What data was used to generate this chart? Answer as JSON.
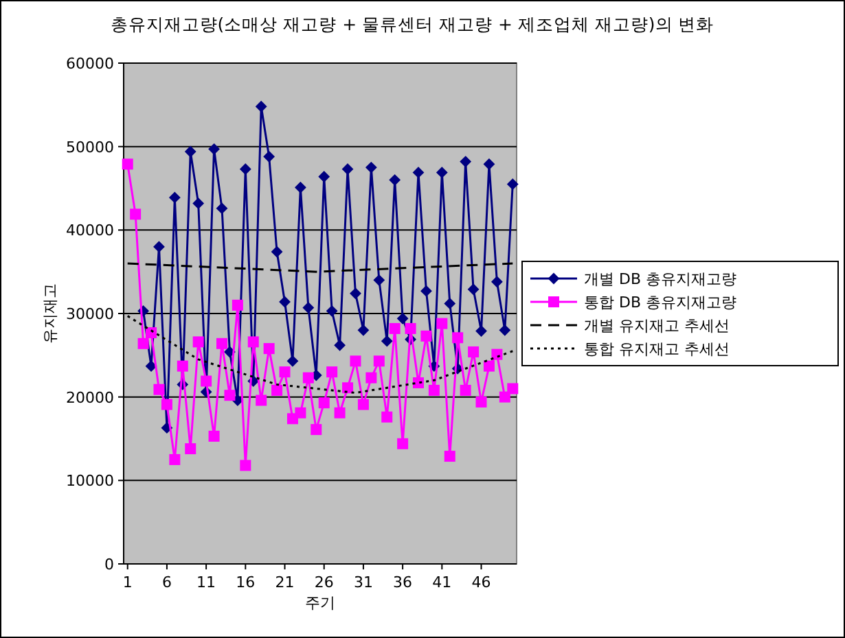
{
  "chart_data": {
    "type": "line",
    "title": "총유지재고량(소매상 재고량 + 물류센터 재고량 + 제조업체 재고량)의 변화",
    "xlabel": "주기",
    "ylabel": "유지재고",
    "xlim": [
      0.5,
      50.5
    ],
    "xticks": [
      1,
      6,
      11,
      16,
      21,
      26,
      31,
      36,
      41,
      46
    ],
    "ylim": [
      0,
      60000
    ],
    "yticks": [
      0,
      10000,
      20000,
      30000,
      40000,
      50000,
      60000
    ],
    "grid": "y",
    "legend": "right",
    "x": [
      1,
      2,
      3,
      4,
      5,
      6,
      7,
      8,
      9,
      10,
      11,
      12,
      13,
      14,
      15,
      16,
      17,
      18,
      19,
      20,
      21,
      22,
      23,
      24,
      25,
      26,
      27,
      28,
      29,
      30,
      31,
      32,
      33,
      34,
      35,
      36,
      37,
      38,
      39,
      40,
      41,
      42,
      43,
      44,
      45,
      46,
      47,
      48,
      49,
      50
    ],
    "series": [
      {
        "name": "개별 DB 총유지재고량",
        "color": "#000080",
        "marker": "diamond",
        "line_style": "solid",
        "values": [
          null,
          null,
          30300,
          23700,
          38000,
          16300,
          43900,
          21500,
          49400,
          43200,
          20600,
          49700,
          42600,
          25400,
          19600,
          47300,
          21900,
          54800,
          48800,
          37400,
          31400,
          24300,
          45100,
          30700,
          22600,
          46400,
          30300,
          26200,
          47300,
          32400,
          28000,
          47500,
          34000,
          26700,
          46000,
          29400,
          26900,
          46900,
          32700,
          23700,
          46900,
          31200,
          23400,
          48200,
          32900,
          27900,
          47900,
          33800,
          28000,
          45500
        ]
      },
      {
        "name": "통합 DB 총유지재고량",
        "color": "#ff00ff",
        "marker": "square",
        "line_style": "solid",
        "values": [
          47900,
          41900,
          26400,
          27700,
          20900,
          19100,
          12500,
          23700,
          13800,
          26600,
          21900,
          15300,
          26400,
          20200,
          31000,
          11800,
          26600,
          19600,
          25800,
          20800,
          23000,
          17400,
          18100,
          22300,
          16100,
          19300,
          23000,
          18100,
          21100,
          24300,
          19100,
          22300,
          24300,
          17600,
          28200,
          14400,
          28200,
          21700,
          27300,
          20800,
          28800,
          12900,
          27100,
          20800,
          25400,
          19400,
          23700,
          25100,
          20000,
          21000
        ]
      },
      {
        "name": "개별 유지재고 추세선",
        "color": "#000000",
        "marker": "none",
        "line_style": "dashed",
        "x": [
          1,
          25,
          50
        ],
        "values": [
          36000,
          35000,
          36000
        ]
      },
      {
        "name": "통합 유지재고 추세선",
        "color": "#000000",
        "marker": "none",
        "line_style": "dotted",
        "x": [
          1,
          10,
          20,
          30,
          40,
          50
        ],
        "values": [
          29700,
          24500,
          21500,
          20500,
          22000,
          25500
        ]
      }
    ]
  }
}
